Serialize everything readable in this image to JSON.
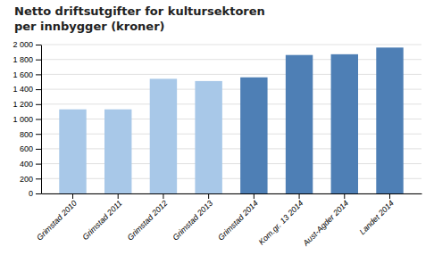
{
  "chart_data": {
    "type": "bar",
    "title": "Netto driftsutgifter for kultursektoren",
    "subtitle": "per innbygger (kroner)",
    "categories": [
      "Grimstad 2010",
      "Grimstad 2011",
      "Grimstad 2012",
      "Grimstad 2013",
      "Grimstad 2014",
      "Kom.gr. 13 2014",
      "Aust-Agder 2014",
      "Landet 2014"
    ],
    "values": [
      1130,
      1130,
      1540,
      1510,
      1560,
      1860,
      1870,
      1960
    ],
    "colors": [
      "#a8c8e8",
      "#a8c8e8",
      "#a8c8e8",
      "#a8c8e8",
      "#4e7fb5",
      "#4e7fb5",
      "#4e7fb5",
      "#4e7fb5"
    ],
    "ylim": [
      0,
      2000
    ],
    "yticks": [
      0,
      200,
      400,
      600,
      800,
      {
        "value": 1000,
        "label": "1 000"
      },
      {
        "value": 1200,
        "label": "1 200"
      },
      {
        "value": 1400,
        "label": "1 400"
      },
      {
        "value": 1600,
        "label": "1 600"
      },
      {
        "value": 1800,
        "label": "1 800"
      },
      {
        "value": 2000,
        "label": "2 000"
      }
    ],
    "grid": true
  }
}
